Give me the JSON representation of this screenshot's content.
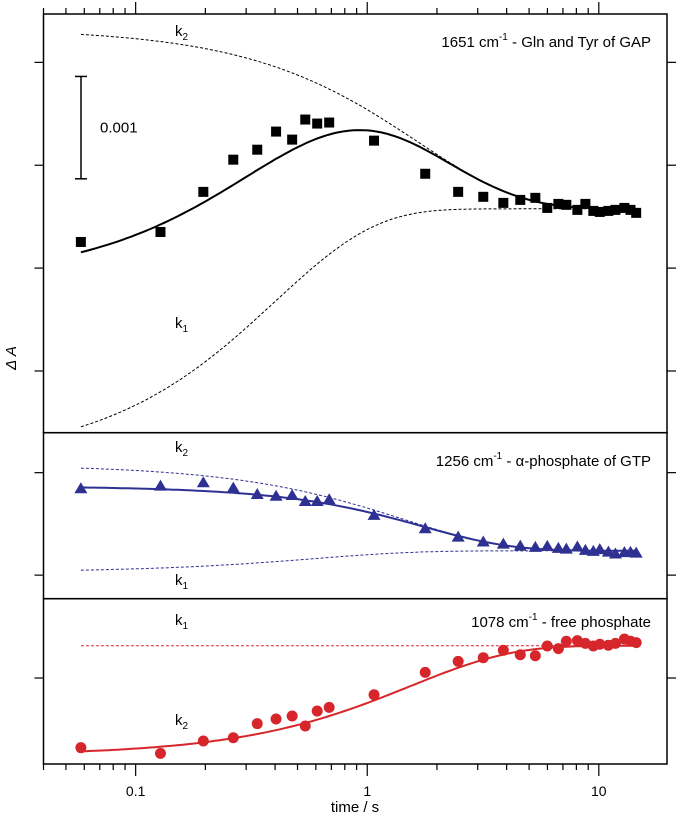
{
  "chart_data": {
    "type": "scatter",
    "xlabel": "time / s",
    "ylabel": "Δ A",
    "xscale": "log",
    "xlim": [
      0.04,
      19.7
    ],
    "xticks": [
      {
        "value": 0.1,
        "label": "0.1"
      },
      {
        "value": 1,
        "label": "1"
      },
      {
        "value": 10,
        "label": "10"
      }
    ],
    "x_values_note_units": "s",
    "y_units": "ΔA × 10^-3",
    "scalebar": {
      "label": "0.001",
      "from": 0.868,
      "to": 1.863
    },
    "colors": {
      "top": "#000000",
      "middle": "#2e3192",
      "bottom": "#d7262b"
    },
    "panels": [
      {
        "id": "top",
        "title_main": "1651 cm",
        "title_sup": "-1",
        "title_rest": " - Gln and Tyr of GAP",
        "marker": "square",
        "ylim": [
          -1.6,
          2.47
        ],
        "yticks": [
          -1,
          0,
          1,
          2
        ],
        "labels": [
          {
            "k": "k",
            "sub": "2",
            "pos": "top-left"
          },
          {
            "k": "k",
            "sub": "1",
            "pos": "lower-left"
          }
        ],
        "t": [
          0.058,
          0.128,
          0.196,
          0.264,
          0.335,
          0.404,
          0.474,
          0.54,
          0.608,
          0.685,
          1.07,
          1.78,
          2.47,
          3.17,
          3.87,
          4.58,
          5.32,
          5.99,
          6.69,
          7.24,
          8.08,
          8.75,
          9.47,
          10.1,
          11.0,
          11.8,
          12.9,
          13.7,
          14.5
        ],
        "values": [
          0.254,
          0.351,
          0.741,
          1.054,
          1.151,
          1.327,
          1.249,
          1.444,
          1.405,
          1.415,
          1.239,
          0.917,
          0.741,
          0.693,
          0.634,
          0.663,
          0.683,
          0.585,
          0.624,
          0.615,
          0.566,
          0.624,
          0.556,
          0.546,
          0.556,
          0.566,
          0.585,
          0.566,
          0.537
        ],
        "fit": {
          "plateau": 0.576,
          "A1": 2.449,
          "k1": 2.5,
          "A2": 1.756,
          "k2": 0.6,
          "show_k1": true,
          "show_k2": true
        }
      },
      {
        "id": "middle",
        "title_main": "1256 cm",
        "title_sup": "-1",
        "title_rest": " - α-phosphate of GTP",
        "marker": "triangle",
        "ylim": [
          -0.23,
          1.39
        ],
        "yticks": [
          0,
          1
        ],
        "labels": [
          {
            "k": "k",
            "sub": "2",
            "pos": "top-left"
          },
          {
            "k": "k",
            "sub": "1",
            "pos": "bottom-left"
          }
        ],
        "t": [
          0.058,
          0.128,
          0.196,
          0.264,
          0.335,
          0.404,
          0.474,
          0.54,
          0.608,
          0.685,
          1.07,
          1.78,
          2.47,
          3.17,
          3.87,
          4.58,
          5.32,
          5.99,
          6.69,
          7.24,
          8.08,
          8.75,
          9.47,
          10.1,
          11.0,
          11.8,
          12.9,
          13.7,
          14.5
        ],
        "values": [
          0.848,
          0.873,
          0.907,
          0.854,
          0.792,
          0.775,
          0.782,
          0.724,
          0.724,
          0.741,
          0.588,
          0.458,
          0.376,
          0.328,
          0.308,
          0.288,
          0.276,
          0.285,
          0.266,
          0.259,
          0.279,
          0.247,
          0.237,
          0.254,
          0.23,
          0.211,
          0.224,
          0.227,
          0.22
        ],
        "fit": {
          "plateau": 0.237,
          "A1": 0.208,
          "k1": 1.7,
          "A2": 0.841,
          "k2": 0.7,
          "show_k1": true,
          "show_k2": true
        }
      },
      {
        "id": "bottom",
        "title_main": "1078 cm",
        "title_sup": "-1",
        "title_rest": " - free phosphate",
        "marker": "circle",
        "ylim": [
          -0.838,
          0.773
        ],
        "yticks": [
          0
        ],
        "labels": [
          {
            "k": "k",
            "sub": "1",
            "pos": "top-left"
          },
          {
            "k": "k",
            "sub": "2",
            "pos": "lower-left"
          }
        ],
        "t": [
          0.058,
          0.128,
          0.196,
          0.264,
          0.335,
          0.404,
          0.474,
          0.54,
          0.608,
          0.685,
          1.07,
          1.78,
          2.47,
          3.17,
          3.87,
          4.58,
          5.32,
          5.99,
          6.69,
          7.24,
          8.08,
          8.75,
          9.47,
          10.1,
          11.0,
          11.8,
          12.9,
          13.7,
          14.5
        ],
        "values": [
          -0.679,
          -0.734,
          -0.614,
          -0.582,
          -0.445,
          -0.399,
          -0.37,
          -0.468,
          -0.322,
          -0.286,
          -0.163,
          0.055,
          0.162,
          0.198,
          0.27,
          0.227,
          0.217,
          0.312,
          0.286,
          0.358,
          0.364,
          0.338,
          0.312,
          0.329,
          0.319,
          0.338,
          0.38,
          0.358,
          0.345
        ],
        "fit": {
          "plateau": 0.315,
          "A1": 0,
          "k1": 0,
          "A2": 1.07,
          "k2": 0.65,
          "show_k1": true,
          "show_k2": false
        }
      }
    ]
  }
}
